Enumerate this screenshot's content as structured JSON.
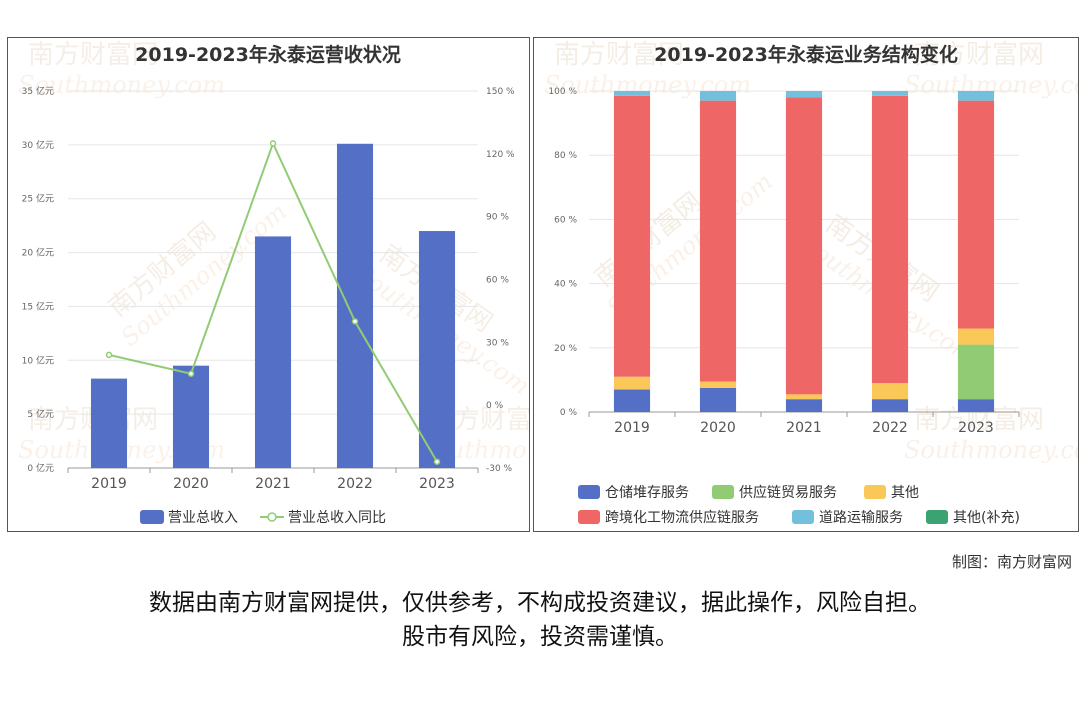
{
  "colors": {
    "revenue_bar": "#5470c6",
    "yoy_line": "#91cc75",
    "cangchu": "#5470c6",
    "gongying": "#91cc75",
    "qita": "#fac858",
    "kuajing": "#ee6666",
    "daolu": "#73c0de",
    "qita_buchong": "#3ba272"
  },
  "watermark": {
    "brand_cn": "南方财富网",
    "brand_en": "Southmoney.com"
  },
  "chart_data": [
    {
      "type": "bar",
      "title": "2019-2023年永泰运营收状况",
      "categories": [
        "2019",
        "2020",
        "2021",
        "2022",
        "2023"
      ],
      "y_left": {
        "unit": "亿元",
        "ylim": [
          0,
          35
        ],
        "ticks": [
          "0 亿元",
          "5 亿元",
          "10 亿元",
          "15 亿元",
          "20 亿元",
          "25 亿元",
          "30 亿元",
          "35 亿元"
        ]
      },
      "y_right": {
        "unit": "%",
        "ylim": [
          -30,
          150
        ],
        "ticks": [
          "-30 %",
          "0 %",
          "30 %",
          "60 %",
          "90 %",
          "120 %",
          "150 %"
        ]
      },
      "series": [
        {
          "name": "营业总收入",
          "type": "bar",
          "axis": "left",
          "values": [
            8.3,
            9.5,
            21.5,
            30.1,
            22.0
          ]
        },
        {
          "name": "营业总收入同比",
          "type": "line",
          "axis": "right",
          "values": [
            24,
            15,
            125,
            40,
            -27
          ]
        }
      ],
      "legend_position": "bottom",
      "grid": true
    },
    {
      "type": "bar",
      "stacked": true,
      "title": "2019-2023年永泰运业务结构变化",
      "categories": [
        "2019",
        "2020",
        "2021",
        "2022",
        "2023"
      ],
      "ylim": [
        0,
        100
      ],
      "yticks": [
        "0 %",
        "20 %",
        "40 %",
        "60 %",
        "80 %",
        "100 %"
      ],
      "series": [
        {
          "name": "仓储堆存服务",
          "values": [
            7,
            7.5,
            4,
            4,
            4
          ]
        },
        {
          "name": "供应链贸易服务",
          "values": [
            0,
            0,
            0,
            0,
            17
          ]
        },
        {
          "name": "其他",
          "values": [
            4,
            2,
            1.5,
            5,
            5
          ]
        },
        {
          "name": "跨境化工物流供应链服务",
          "values": [
            87.5,
            87.5,
            92.5,
            89.5,
            71
          ]
        },
        {
          "name": "道路运输服务",
          "values": [
            1.5,
            3,
            2,
            1.5,
            3
          ]
        },
        {
          "name": "其他(补充)",
          "values": [
            0,
            0,
            0,
            0,
            0
          ]
        }
      ],
      "legend_position": "bottom",
      "grid": true
    }
  ],
  "credit": "制图：南方财富网",
  "disclaimer": {
    "line1": "数据由南方财富网提供，仅供参考，不构成投资建议，据此操作，风险自担。",
    "line2": "股市有风险，投资需谨慎。"
  }
}
